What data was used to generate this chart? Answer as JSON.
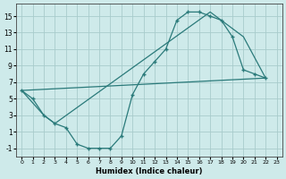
{
  "xlabel": "Humidex (Indice chaleur)",
  "xlim": [
    -0.5,
    23.5
  ],
  "ylim": [
    -2,
    16.5
  ],
  "yticks": [
    -1,
    1,
    3,
    5,
    7,
    9,
    11,
    13,
    15
  ],
  "xticks": [
    0,
    1,
    2,
    3,
    4,
    5,
    6,
    7,
    8,
    9,
    10,
    11,
    12,
    13,
    14,
    15,
    16,
    17,
    18,
    19,
    20,
    21,
    22,
    23
  ],
  "background_color": "#ceeaea",
  "grid_color": "#a8cccc",
  "line_color": "#2a7a7a",
  "line1_x": [
    0,
    1,
    2,
    3,
    4,
    5,
    6,
    7,
    8,
    9,
    10,
    11,
    12,
    13,
    14,
    15,
    16,
    17,
    18,
    19,
    20,
    21,
    22
  ],
  "line1_y": [
    6.0,
    5.0,
    3.0,
    2.0,
    1.5,
    -0.5,
    -1.0,
    -1.0,
    -1.0,
    0.5,
    5.5,
    8.0,
    9.5,
    11.0,
    14.5,
    15.5,
    15.5,
    15.0,
    14.5,
    12.5,
    8.5,
    8.0,
    7.5
  ],
  "line2_x": [
    0,
    2,
    3,
    17,
    20,
    22
  ],
  "line2_y": [
    6.0,
    3.0,
    2.0,
    15.5,
    12.5,
    7.5
  ],
  "line3_x": [
    0,
    22
  ],
  "line3_y": [
    6.0,
    7.5
  ]
}
